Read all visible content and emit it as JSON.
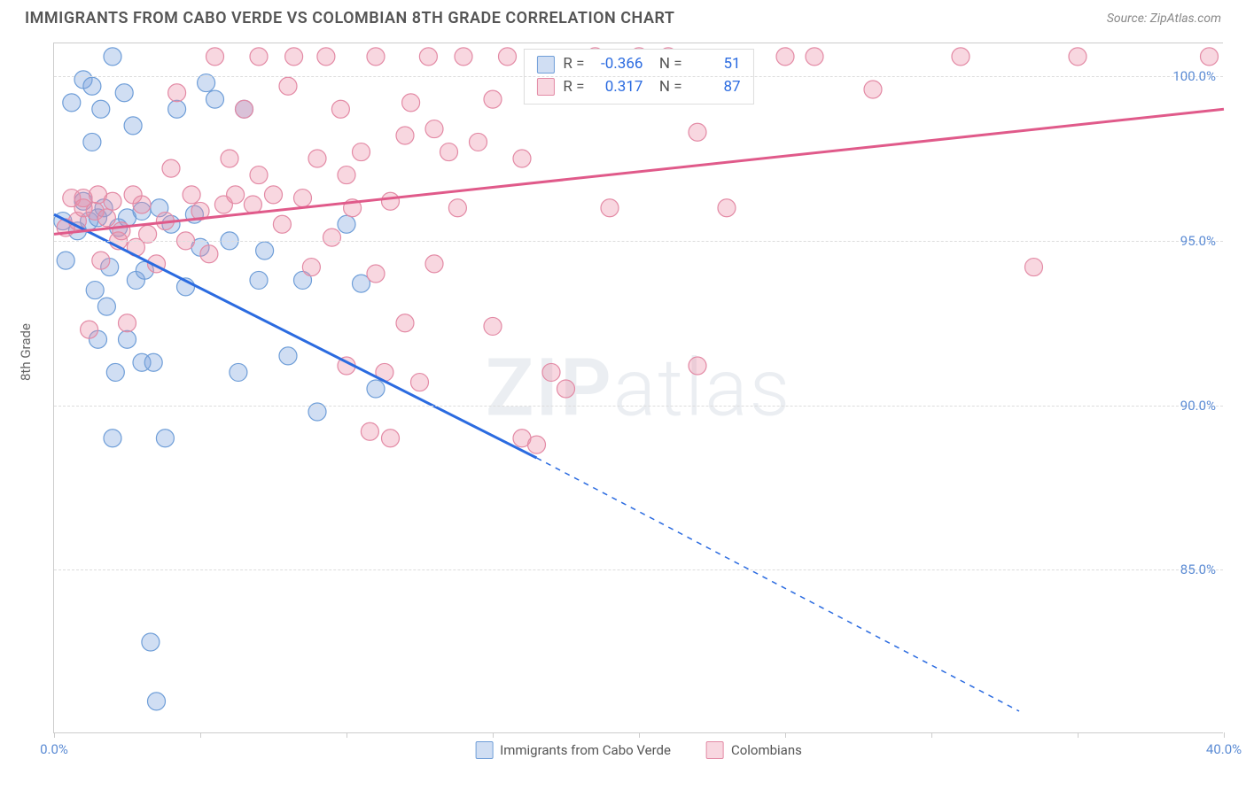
{
  "title": "IMMIGRANTS FROM CABO VERDE VS COLOMBIAN 8TH GRADE CORRELATION CHART",
  "source": "Source: ZipAtlas.com",
  "y_axis_label": "8th Grade",
  "watermark": {
    "bold": "ZIP",
    "light": "atlas"
  },
  "chart": {
    "type": "scatter-with-trend",
    "xlim": [
      0,
      40
    ],
    "ylim": [
      80,
      101
    ],
    "y_ticks": [
      85.0,
      90.0,
      95.0,
      100.0
    ],
    "y_tick_labels": [
      "85.0%",
      "90.0%",
      "95.0%",
      "100.0%"
    ],
    "x_ticks": [
      0,
      5,
      10,
      15,
      20,
      25,
      30,
      35,
      40
    ],
    "x_tick_labels": [
      "0.0%",
      "",
      "",
      "",
      "",
      "",
      "",
      "",
      "40.0%"
    ],
    "grid_color": "#dddddd",
    "axis_color": "#cccccc",
    "tick_label_color": "#5b8bd4",
    "background_color": "#ffffff",
    "series": [
      {
        "name": "Immigrants from Cabo Verde",
        "color_fill": "rgba(120,160,220,0.35)",
        "color_stroke": "#6f9ed8",
        "line_color": "#2b6be0",
        "r_value": "-0.366",
        "n_value": "51",
        "marker_radius": 10,
        "trend": {
          "x1": 0,
          "y1": 95.8,
          "x2": 16.5,
          "y2": 88.4,
          "x2_ext": 33,
          "y2_ext": 80.7
        },
        "points": [
          [
            0.3,
            95.6
          ],
          [
            0.4,
            94.4
          ],
          [
            0.6,
            99.2
          ],
          [
            0.8,
            95.3
          ],
          [
            1.0,
            99.9
          ],
          [
            1.0,
            96.2
          ],
          [
            1.2,
            95.6
          ],
          [
            1.3,
            99.7
          ],
          [
            1.3,
            98.0
          ],
          [
            1.4,
            93.5
          ],
          [
            1.5,
            92.0
          ],
          [
            1.5,
            95.7
          ],
          [
            1.6,
            99.0
          ],
          [
            1.7,
            96.0
          ],
          [
            1.8,
            93.0
          ],
          [
            1.9,
            94.2
          ],
          [
            2.0,
            100.6
          ],
          [
            2.0,
            89.0
          ],
          [
            2.1,
            91.0
          ],
          [
            2.2,
            95.4
          ],
          [
            2.4,
            99.5
          ],
          [
            2.5,
            95.7
          ],
          [
            2.5,
            92.0
          ],
          [
            2.7,
            98.5
          ],
          [
            2.8,
            93.8
          ],
          [
            3.0,
            91.3
          ],
          [
            3.0,
            95.9
          ],
          [
            3.1,
            94.1
          ],
          [
            3.3,
            82.8
          ],
          [
            3.4,
            91.3
          ],
          [
            3.5,
            81.0
          ],
          [
            3.6,
            96.0
          ],
          [
            3.8,
            89.0
          ],
          [
            4.0,
            95.5
          ],
          [
            4.2,
            99.0
          ],
          [
            4.5,
            93.6
          ],
          [
            4.8,
            95.8
          ],
          [
            5.0,
            94.8
          ],
          [
            5.2,
            99.8
          ],
          [
            5.5,
            99.3
          ],
          [
            6.0,
            95.0
          ],
          [
            6.3,
            91.0
          ],
          [
            6.5,
            99.0
          ],
          [
            7.0,
            93.8
          ],
          [
            7.2,
            94.7
          ],
          [
            8.0,
            91.5
          ],
          [
            8.5,
            93.8
          ],
          [
            9.0,
            89.8
          ],
          [
            10.0,
            95.5
          ],
          [
            10.5,
            93.7
          ],
          [
            11.0,
            90.5
          ]
        ]
      },
      {
        "name": "Colombians",
        "color_fill": "rgba(235,140,165,0.35)",
        "color_stroke": "#e38aa5",
        "line_color": "#e05a8a",
        "r_value": "0.317",
        "n_value": "87",
        "marker_radius": 10,
        "trend": {
          "x1": 0,
          "y1": 95.2,
          "x2": 40,
          "y2": 99.0
        },
        "points": [
          [
            0.4,
            95.4
          ],
          [
            0.6,
            96.3
          ],
          [
            0.8,
            95.6
          ],
          [
            1.0,
            96.0
          ],
          [
            1.0,
            96.3
          ],
          [
            1.2,
            92.3
          ],
          [
            1.4,
            95.9
          ],
          [
            1.5,
            96.4
          ],
          [
            1.6,
            94.4
          ],
          [
            1.8,
            95.7
          ],
          [
            2.0,
            96.2
          ],
          [
            2.2,
            95.0
          ],
          [
            2.3,
            95.3
          ],
          [
            2.5,
            92.5
          ],
          [
            2.7,
            96.4
          ],
          [
            2.8,
            94.8
          ],
          [
            3.0,
            96.1
          ],
          [
            3.2,
            95.2
          ],
          [
            3.5,
            94.3
          ],
          [
            3.8,
            95.6
          ],
          [
            4.0,
            97.2
          ],
          [
            4.2,
            99.5
          ],
          [
            4.5,
            95.0
          ],
          [
            4.7,
            96.4
          ],
          [
            5.0,
            95.9
          ],
          [
            5.3,
            94.6
          ],
          [
            5.5,
            100.6
          ],
          [
            5.8,
            96.1
          ],
          [
            6.0,
            97.5
          ],
          [
            6.2,
            96.4
          ],
          [
            6.5,
            99.0
          ],
          [
            6.8,
            96.1
          ],
          [
            7.0,
            100.6
          ],
          [
            7.0,
            97.0
          ],
          [
            7.5,
            96.4
          ],
          [
            7.8,
            95.5
          ],
          [
            8.0,
            99.7
          ],
          [
            8.2,
            100.6
          ],
          [
            8.5,
            96.3
          ],
          [
            8.8,
            94.2
          ],
          [
            9.0,
            97.5
          ],
          [
            9.3,
            100.6
          ],
          [
            9.5,
            95.1
          ],
          [
            9.8,
            99.0
          ],
          [
            10.0,
            97.0
          ],
          [
            10.0,
            91.2
          ],
          [
            10.2,
            96.0
          ],
          [
            10.5,
            97.7
          ],
          [
            10.8,
            89.2
          ],
          [
            11.0,
            94.0
          ],
          [
            11.0,
            100.6
          ],
          [
            11.3,
            91.0
          ],
          [
            11.5,
            96.2
          ],
          [
            11.5,
            89.0
          ],
          [
            12.0,
            98.2
          ],
          [
            12.0,
            92.5
          ],
          [
            12.2,
            99.2
          ],
          [
            12.5,
            90.7
          ],
          [
            12.8,
            100.6
          ],
          [
            13.0,
            98.4
          ],
          [
            13.0,
            94.3
          ],
          [
            13.5,
            97.7
          ],
          [
            13.8,
            96.0
          ],
          [
            14.0,
            100.6
          ],
          [
            14.5,
            98.0
          ],
          [
            15.0,
            99.3
          ],
          [
            15.0,
            92.4
          ],
          [
            15.5,
            100.6
          ],
          [
            16.0,
            97.5
          ],
          [
            16.0,
            89.0
          ],
          [
            16.5,
            88.8
          ],
          [
            17.0,
            91.0
          ],
          [
            17.5,
            90.5
          ],
          [
            18.5,
            100.6
          ],
          [
            19.0,
            96.0
          ],
          [
            20.0,
            100.6
          ],
          [
            21.0,
            100.6
          ],
          [
            22.0,
            98.3
          ],
          [
            22.0,
            91.2
          ],
          [
            23.0,
            96.0
          ],
          [
            25.0,
            100.6
          ],
          [
            26.0,
            100.6
          ],
          [
            28.0,
            99.6
          ],
          [
            31.0,
            100.6
          ],
          [
            33.5,
            94.2
          ],
          [
            35.0,
            100.6
          ],
          [
            39.5,
            100.6
          ]
        ]
      }
    ],
    "bottom_legend": [
      {
        "label": "Immigrants from Cabo Verde",
        "fill": "rgba(120,160,220,0.35)",
        "stroke": "#6f9ed8"
      },
      {
        "label": "Colombians",
        "fill": "rgba(235,140,165,0.35)",
        "stroke": "#e38aa5"
      }
    ]
  }
}
